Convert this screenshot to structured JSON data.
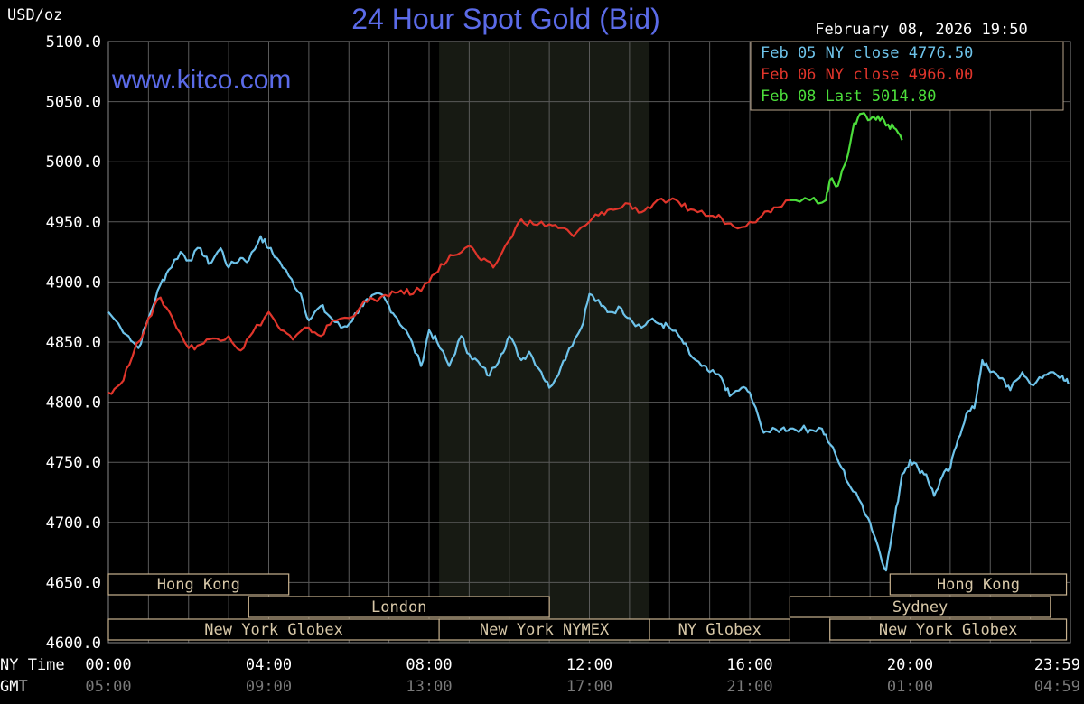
{
  "header": {
    "units": "USD/oz",
    "title": "24 Hour Spot Gold (Bid)",
    "datetime": "February 08, 2026 19:50",
    "watermark": "www.kitco.com"
  },
  "legend": [
    {
      "label": "Feb 05 NY close 4776.50",
      "color": "#6ec3ea"
    },
    {
      "label": "Feb 06 NY close 4966.00",
      "color": "#e0352b"
    },
    {
      "label": "Feb 08 Last 5014.80",
      "color": "#4cde3b"
    }
  ],
  "time_axis": {
    "ny_label": "NY Time",
    "gmt_label": "GMT",
    "ny_ticks": [
      "00:00",
      "04:00",
      "08:00",
      "12:00",
      "16:00",
      "20:00",
      "23:59"
    ],
    "gmt_ticks": [
      "05:00",
      "09:00",
      "13:00",
      "17:00",
      "21:00",
      "01:00",
      "04:59"
    ],
    "tick_hours": [
      0,
      4,
      8,
      12,
      16,
      20,
      24
    ]
  },
  "sessions": [
    {
      "label": "Hong Kong",
      "start": 0,
      "end": 4.5
    },
    {
      "label": "London",
      "start": 3.5,
      "end": 11.0
    },
    {
      "label": "New York Globex",
      "start": 0,
      "end": 8.25
    },
    {
      "label": "New York NYMEX",
      "start": 8.25,
      "end": 13.5
    },
    {
      "label": "NY Globex",
      "start": 13.5,
      "end": 17.0
    },
    {
      "label": "Sydney",
      "start": 17.0,
      "end": 23.5
    },
    {
      "label": "Hong Kong",
      "start": 19.5,
      "end": 23.9
    },
    {
      "label": "New York Globex",
      "start": 18.0,
      "end": 23.9
    }
  ],
  "chart_data": {
    "type": "line",
    "title": "24 Hour Spot Gold (Bid)",
    "ylabel": "USD/oz",
    "xlabel": "NY Time",
    "ylim": [
      4600,
      5100
    ],
    "xlim": [
      0,
      24
    ],
    "y_ticks": [
      "5100.0",
      "5050.0",
      "5000.0",
      "4950.0",
      "4900.0",
      "4850.0",
      "4800.0",
      "4750.0",
      "4700.0",
      "4650.0",
      "4600.0"
    ],
    "y_tick_values": [
      5100,
      5050,
      5000,
      4950,
      4900,
      4850,
      4800,
      4750,
      4700,
      4650,
      4600
    ],
    "grid": true,
    "legend_position": "top-right",
    "shaded_region": [
      8.25,
      13.5
    ],
    "series": [
      {
        "name": "Feb 05 NY close 4776.50",
        "color": "#6ec3ea",
        "x": [
          0,
          0.5,
          0.75,
          1.0,
          1.3,
          1.5,
          1.8,
          2.0,
          2.3,
          2.5,
          2.8,
          3.0,
          3.3,
          3.5,
          3.8,
          4.0,
          4.2,
          4.5,
          4.8,
          5.0,
          5.3,
          5.5,
          5.8,
          6.0,
          6.3,
          6.5,
          6.8,
          7.0,
          7.2,
          7.5,
          7.8,
          8.0,
          8.2,
          8.5,
          8.8,
          9.0,
          9.3,
          9.5,
          9.8,
          10.0,
          10.3,
          10.5,
          10.8,
          11.0,
          11.3,
          11.5,
          11.8,
          12.0,
          12.3,
          12.5,
          12.8,
          13.0,
          13.3,
          13.5,
          13.8,
          14.0,
          14.3,
          14.5,
          14.8,
          15.0,
          15.3,
          15.5,
          15.8,
          16.0,
          16.3,
          16.5,
          16.8,
          17.0,
          17.3,
          17.5,
          17.8,
          18.0,
          18.3,
          18.5,
          18.8,
          19.0,
          19.2,
          19.4,
          19.6,
          19.8,
          20.0,
          20.2,
          20.4,
          20.6,
          20.8,
          21.0,
          21.2,
          21.4,
          21.6,
          21.8,
          22.0,
          22.3,
          22.5,
          22.8,
          23.0,
          23.3,
          23.5,
          23.8,
          23.95
        ],
        "values": [
          4875,
          4855,
          4845,
          4870,
          4898,
          4910,
          4925,
          4918,
          4928,
          4915,
          4928,
          4912,
          4920,
          4918,
          4938,
          4928,
          4920,
          4905,
          4890,
          4868,
          4880,
          4872,
          4862,
          4865,
          4880,
          4885,
          4890,
          4880,
          4870,
          4855,
          4830,
          4860,
          4850,
          4830,
          4855,
          4840,
          4830,
          4822,
          4840,
          4855,
          4835,
          4842,
          4825,
          4812,
          4830,
          4845,
          4862,
          4890,
          4880,
          4875,
          4878,
          4870,
          4862,
          4868,
          4865,
          4862,
          4852,
          4840,
          4830,
          4825,
          4820,
          4805,
          4812,
          4808,
          4778,
          4775,
          4778,
          4778,
          4778,
          4777,
          4778,
          4765,
          4745,
          4730,
          4715,
          4700,
          4680,
          4660,
          4700,
          4740,
          4752,
          4745,
          4740,
          4722,
          4738,
          4745,
          4770,
          4790,
          4795,
          4835,
          4825,
          4820,
          4810,
          4825,
          4815,
          4820,
          4825,
          4822,
          4815
        ]
      },
      {
        "name": "Feb 06 NY close 4966.00",
        "color": "#e0352b",
        "x": [
          0,
          0.3,
          0.6,
          1.0,
          1.3,
          1.6,
          2.0,
          2.3,
          2.6,
          3.0,
          3.3,
          3.6,
          4.0,
          4.3,
          4.6,
          5.0,
          5.3,
          5.6,
          6.0,
          6.3,
          6.6,
          7.0,
          7.3,
          7.6,
          8.0,
          8.3,
          8.6,
          9.0,
          9.3,
          9.6,
          10.0,
          10.3,
          10.6,
          11.0,
          11.3,
          11.6,
          12.0,
          12.3,
          12.6,
          13.0,
          13.3,
          13.6,
          14.0,
          14.3,
          14.6,
          15.0,
          15.3,
          15.6,
          16.0,
          16.3,
          16.6,
          17.0
        ],
        "values": [
          4808,
          4815,
          4838,
          4870,
          4887,
          4870,
          4845,
          4848,
          4853,
          4855,
          4843,
          4858,
          4875,
          4860,
          4852,
          4862,
          4855,
          4868,
          4870,
          4880,
          4886,
          4888,
          4893,
          4890,
          4900,
          4915,
          4922,
          4930,
          4918,
          4912,
          4935,
          4952,
          4948,
          4948,
          4945,
          4938,
          4950,
          4958,
          4960,
          4965,
          4958,
          4965,
          4968,
          4963,
          4960,
          4955,
          4953,
          4946,
          4950,
          4955,
          4962,
          4968
        ]
      },
      {
        "name": "Feb 08 Last 5014.80",
        "color": "#4cde3b",
        "x": [
          17.0,
          17.5,
          17.9,
          18.0,
          18.2,
          18.4,
          18.6,
          18.8,
          19.0,
          19.2,
          19.4,
          19.6,
          19.8
        ],
        "values": [
          4968,
          4968,
          4968,
          4985,
          4980,
          5000,
          5032,
          5040,
          5035,
          5038,
          5030,
          5028,
          5018
        ]
      }
    ]
  }
}
